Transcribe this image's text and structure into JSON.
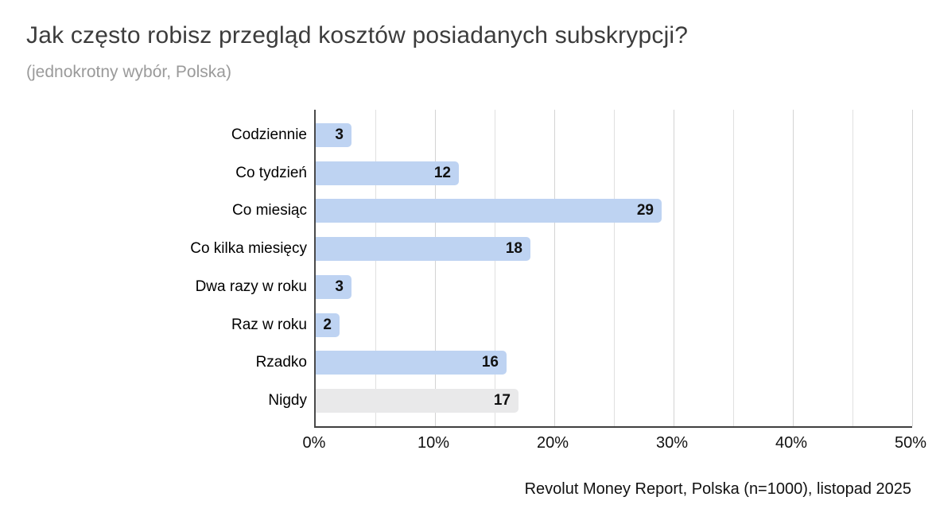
{
  "header": {
    "title": "Jak często robisz przegląd kosztów posiadanych subskrypcji?",
    "subtitle": "(jednokrotny wybór, Polska)"
  },
  "footer": {
    "source": "Revolut Money Report, Polska (n=1000), listopad 2025"
  },
  "chart_data": {
    "type": "bar",
    "orientation": "horizontal",
    "title": "Jak często robisz przegląd kosztów posiadanych subskrypcji?",
    "subtitle": "(jednokrotny wybór, Polska)",
    "unit": "%",
    "categories": [
      "Codziennie",
      "Co tydzień",
      "Co miesiąc",
      "Co kilka miesięcy",
      "Dwa razy w roku",
      "Raz w roku",
      "Rzadko",
      "Nigdy"
    ],
    "values": [
      3,
      12,
      29,
      18,
      3,
      2,
      16,
      17
    ],
    "bar_colors": [
      "#bed3f2",
      "#bed3f2",
      "#bed3f2",
      "#bed3f2",
      "#bed3f2",
      "#bed3f2",
      "#bed3f2",
      "#e9e9ea"
    ],
    "value_labels_inside_bar": true,
    "xlim": [
      0,
      50
    ],
    "x_ticks": [
      {
        "value": 0,
        "label": "0%"
      },
      {
        "value": 10,
        "label": "10%"
      },
      {
        "value": 20,
        "label": "20%"
      },
      {
        "value": 30,
        "label": "30%"
      },
      {
        "value": 40,
        "label": "40%"
      },
      {
        "value": 50,
        "label": "50%"
      }
    ],
    "gridline_step": 5,
    "grid": "vertical only",
    "legend": "none"
  },
  "colors": {
    "bar_blue": "#bed3f2",
    "bar_gray": "#e9e9ea",
    "axis": "#4a4a4a",
    "gridline_minor": "#e0e0e0",
    "gridline_major": "#d4d4d4",
    "title_text": "#3c3c3c",
    "subtitle_text": "#9a9a9a",
    "body_text": "#111111",
    "background": "#ffffff"
  }
}
